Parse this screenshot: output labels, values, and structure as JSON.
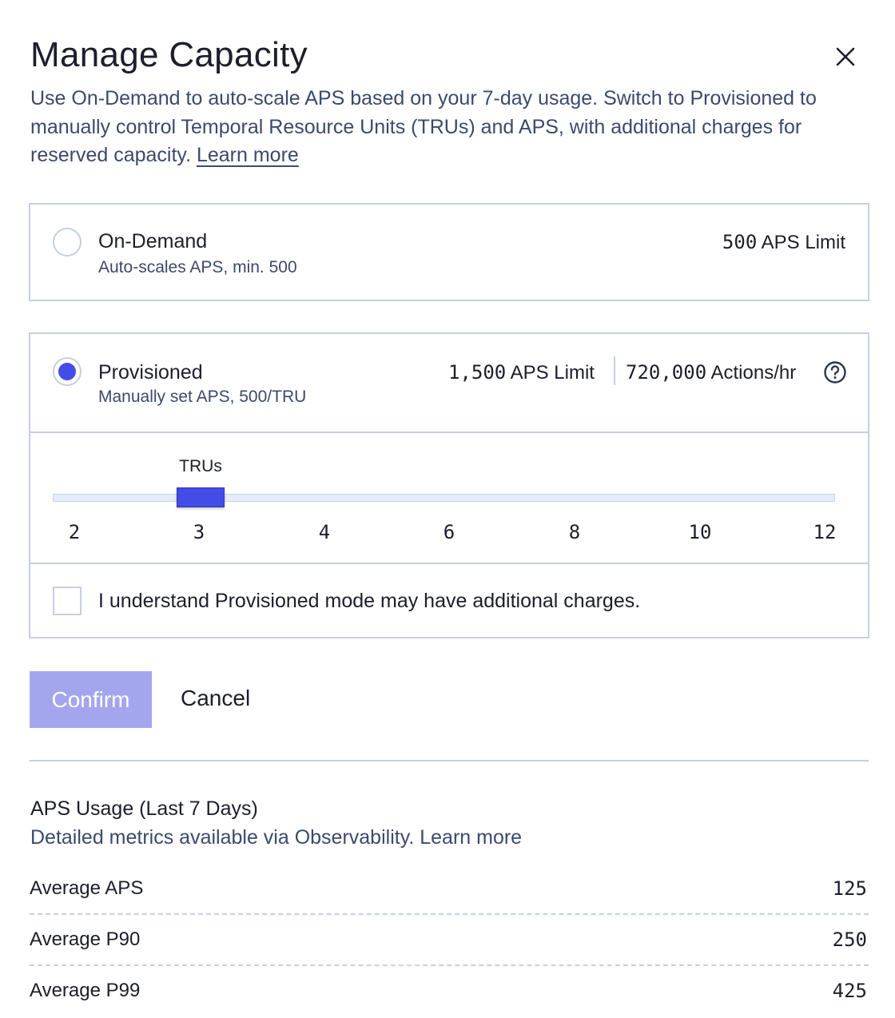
{
  "dialog": {
    "title": "Manage Capacity",
    "close_icon": "close-icon",
    "description": "Use On-Demand to auto-scale APS based on your 7-day usage. Switch to Provisioned to manually control Temporal Resource Units (TRUs) and APS, with additional charges for reserved capacity. ",
    "learn_more": "Learn more"
  },
  "options": {
    "on_demand": {
      "title": "On-Demand",
      "subtitle": "Auto-scales APS, min. 500",
      "limit_value": "500",
      "limit_label": " APS Limit",
      "selected": false
    },
    "provisioned": {
      "title": "Provisioned",
      "subtitle": "Manually set APS, 500/TRU",
      "limit_value": "1,500",
      "limit_label": " APS Limit",
      "actions_value": "720,000",
      "actions_label": " Actions/hr",
      "help_icon": "question-circle-icon",
      "selected": true
    }
  },
  "slider": {
    "label": "TRUs",
    "ticks": [
      "2",
      "3",
      "4",
      "6",
      "8",
      "10",
      "12"
    ],
    "value": "3"
  },
  "acknowledge": {
    "label": "I understand Provisioned mode may have additional charges.",
    "checked": false
  },
  "actions": {
    "confirm": "Confirm",
    "cancel": "Cancel"
  },
  "usage": {
    "title": "APS Usage (Last 7 Days)",
    "subtitle": "Detailed metrics available via Observability. Learn more",
    "rows": [
      {
        "label": "Average APS",
        "value": "125"
      },
      {
        "label": "Average P90",
        "value": "250"
      },
      {
        "label": "Average P99",
        "value": "425"
      }
    ]
  },
  "colors": {
    "accent": "#444ce7",
    "confirm_disabled": "#a4a6ed",
    "border": "#c5cfe3",
    "secondary_text": "#3b4a6b"
  }
}
